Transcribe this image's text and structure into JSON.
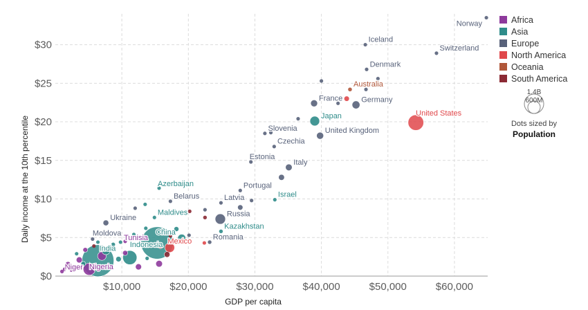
{
  "chart_data": {
    "type": "scatter",
    "xlabel": "GDP per capita",
    "ylabel": "Daily income at the 10th percentile",
    "xlim": [
      0,
      65000
    ],
    "ylim": [
      0,
      34
    ],
    "x_ticks": [
      {
        "value": 10000,
        "label": "$10,000"
      },
      {
        "value": 20000,
        "label": "$20,000"
      },
      {
        "value": 30000,
        "label": "$30,000"
      },
      {
        "value": 40000,
        "label": "$40,000"
      },
      {
        "value": 50000,
        "label": "$50,000"
      },
      {
        "value": 60000,
        "label": "$60,000"
      }
    ],
    "y_ticks": [
      {
        "value": 0,
        "label": "$0"
      },
      {
        "value": 5,
        "label": "$5"
      },
      {
        "value": 10,
        "label": "$10"
      },
      {
        "value": 15,
        "label": "$15"
      },
      {
        "value": 20,
        "label": "$20"
      },
      {
        "value": 25,
        "label": "$25"
      },
      {
        "value": 30,
        "label": "$30"
      }
    ],
    "grid": true,
    "legend_position": "right",
    "regions": [
      {
        "name": "Africa",
        "color": "#8e3a9c"
      },
      {
        "name": "Asia",
        "color": "#2f8c8a"
      },
      {
        "name": "Europe",
        "color": "#58627a"
      },
      {
        "name": "North America",
        "color": "#e0484b"
      },
      {
        "name": "Oceania",
        "color": "#b0573a"
      },
      {
        "name": "South America",
        "color": "#8b2a34"
      }
    ],
    "size_legend": {
      "large": "1.4B",
      "small": "600M",
      "note": "Dots sized by",
      "variable": "Population"
    },
    "points": [
      {
        "label": "Norway",
        "x": 64800,
        "y": 33.5,
        "region": "Europe",
        "pop": 5
      },
      {
        "label": "Switzerland",
        "x": 57300,
        "y": 28.9,
        "region": "Europe",
        "pop": 8
      },
      {
        "label": "Iceland",
        "x": 46600,
        "y": 30.0,
        "region": "Europe",
        "pop": 0.4
      },
      {
        "label": "Denmark",
        "x": 46800,
        "y": 26.8,
        "region": "Europe",
        "pop": 6
      },
      {
        "label": "Australia",
        "x": 44300,
        "y": 24.2,
        "region": "Oceania",
        "pop": 25
      },
      {
        "label": "France",
        "x": 38900,
        "y": 22.4,
        "region": "Europe",
        "pop": 65
      },
      {
        "label": "Germany",
        "x": 45200,
        "y": 22.2,
        "region": "Europe",
        "pop": 83
      },
      {
        "label": "Japan",
        "x": 39000,
        "y": 20.1,
        "region": "Asia",
        "pop": 126
      },
      {
        "label": "United States",
        "x": 54200,
        "y": 19.9,
        "region": "North America",
        "pop": 330
      },
      {
        "label": "United Kingdom",
        "x": 39800,
        "y": 18.2,
        "region": "Europe",
        "pop": 67
      },
      {
        "label": "Slovenia",
        "x": 31500,
        "y": 18.5,
        "region": "Europe",
        "pop": 2
      },
      {
        "label": "Czechia",
        "x": 32900,
        "y": 16.8,
        "region": "Europe",
        "pop": 10
      },
      {
        "label": "Estonia",
        "x": 29400,
        "y": 14.8,
        "region": "Europe",
        "pop": 1.3
      },
      {
        "label": "Italy",
        "x": 35100,
        "y": 14.1,
        "region": "Europe",
        "pop": 60
      },
      {
        "label": "Azerbaijan",
        "x": 15600,
        "y": 11.4,
        "region": "Asia",
        "pop": 10
      },
      {
        "label": "Portugal",
        "x": 27800,
        "y": 11.1,
        "region": "Europe",
        "pop": 10
      },
      {
        "label": "Belarus",
        "x": 17300,
        "y": 9.7,
        "region": "Europe",
        "pop": 9
      },
      {
        "label": "Israel",
        "x": 33000,
        "y": 9.9,
        "region": "Asia",
        "pop": 9
      },
      {
        "label": "Latvia",
        "x": 24900,
        "y": 9.5,
        "region": "Europe",
        "pop": 2
      },
      {
        "label": "Maldives",
        "x": 14900,
        "y": 7.6,
        "region": "Asia",
        "pop": 0.5
      },
      {
        "label": "Russia",
        "x": 24800,
        "y": 7.4,
        "region": "Europe",
        "pop": 145
      },
      {
        "label": "Ukraine",
        "x": 7600,
        "y": 6.9,
        "region": "Europe",
        "pop": 44
      },
      {
        "label": "Kazakhstan",
        "x": 24900,
        "y": 5.8,
        "region": "Asia",
        "pop": 19
      },
      {
        "label": "China",
        "x": 15300,
        "y": 4.3,
        "region": "Asia",
        "pop": 1400
      },
      {
        "label": "Moldova",
        "x": 5600,
        "y": 4.8,
        "region": "Europe",
        "pop": 3
      },
      {
        "label": "Tunisia",
        "x": 10500,
        "y": 4.5,
        "region": "Africa",
        "pop": 12
      },
      {
        "label": "Mexico",
        "x": 17200,
        "y": 3.7,
        "region": "North America",
        "pop": 128
      },
      {
        "label": "Romania",
        "x": 23200,
        "y": 4.4,
        "region": "Europe",
        "pop": 19
      },
      {
        "label": "India",
        "x": 6400,
        "y": 2.0,
        "region": "Asia",
        "pop": 1380
      },
      {
        "label": "Indonesia",
        "x": 11200,
        "y": 2.4,
        "region": "Asia",
        "pop": 270
      },
      {
        "label": "Nigeria",
        "x": 5100,
        "y": 0.9,
        "region": "Africa",
        "pop": 200
      },
      {
        "label": "Niger",
        "x": 1000,
        "y": 0.6,
        "region": "Africa",
        "pop": 23
      },
      {
        "x": 40000,
        "y": 25.3,
        "region": "Europe",
        "pop": 1
      },
      {
        "x": 48500,
        "y": 25.6,
        "region": "Europe",
        "pop": 1
      },
      {
        "x": 42500,
        "y": 22.4,
        "region": "Europe",
        "pop": 2
      },
      {
        "x": 46700,
        "y": 24.2,
        "region": "Europe",
        "pop": 11
      },
      {
        "x": 43800,
        "y": 23.0,
        "region": "North America",
        "pop": 38
      },
      {
        "x": 36500,
        "y": 20.4,
        "region": "Europe",
        "pop": 2
      },
      {
        "x": 32400,
        "y": 18.6,
        "region": "Europe",
        "pop": 2
      },
      {
        "x": 34000,
        "y": 12.8,
        "region": "Europe",
        "pop": 47
      },
      {
        "x": 29500,
        "y": 9.8,
        "region": "Europe",
        "pop": 4
      },
      {
        "x": 27800,
        "y": 8.9,
        "region": "Europe",
        "pop": 38
      },
      {
        "x": 22500,
        "y": 8.6,
        "region": "Europe",
        "pop": 4
      },
      {
        "x": 22500,
        "y": 7.6,
        "region": "South America",
        "pop": 19
      },
      {
        "x": 20200,
        "y": 8.4,
        "region": "South America",
        "pop": 3
      },
      {
        "x": 18200,
        "y": 6.1,
        "region": "Asia",
        "pop": 33
      },
      {
        "x": 12000,
        "y": 8.8,
        "region": "Europe",
        "pop": 3
      },
      {
        "x": 13500,
        "y": 9.3,
        "region": "Asia",
        "pop": 4
      },
      {
        "x": 11800,
        "y": 5.4,
        "region": "Asia",
        "pop": 4
      },
      {
        "x": 13600,
        "y": 6.2,
        "region": "Asia",
        "pop": 5
      },
      {
        "x": 17300,
        "y": 5.2,
        "region": "South America",
        "pop": 6
      },
      {
        "x": 20100,
        "y": 5.3,
        "region": "Europe",
        "pop": 7
      },
      {
        "x": 22400,
        "y": 4.3,
        "region": "North America",
        "pop": 15
      },
      {
        "x": 19000,
        "y": 4.9,
        "region": "Asia",
        "pop": 90
      },
      {
        "x": 15800,
        "y": 3.9,
        "region": "North America",
        "pop": 35
      },
      {
        "x": 16800,
        "y": 2.8,
        "region": "South America",
        "pop": 45
      },
      {
        "x": 15600,
        "y": 1.6,
        "region": "Africa",
        "pop": 60
      },
      {
        "x": 12500,
        "y": 1.2,
        "region": "Africa",
        "pop": 50
      },
      {
        "x": 10500,
        "y": 3.0,
        "region": "Africa",
        "pop": 35
      },
      {
        "x": 9500,
        "y": 2.2,
        "region": "Asia",
        "pop": 40
      },
      {
        "x": 7600,
        "y": 3.3,
        "region": "Asia",
        "pop": 90
      },
      {
        "x": 7000,
        "y": 2.6,
        "region": "Africa",
        "pop": 100
      },
      {
        "x": 4500,
        "y": 3.4,
        "region": "Africa",
        "pop": 30
      },
      {
        "x": 3600,
        "y": 2.1,
        "region": "Africa",
        "pop": 50
      },
      {
        "x": 2700,
        "y": 1.2,
        "region": "Africa",
        "pop": 25
      },
      {
        "x": 1900,
        "y": 1.5,
        "region": "Africa",
        "pop": 45
      },
      {
        "x": 2400,
        "y": 0.8,
        "region": "Africa",
        "pop": 20
      },
      {
        "x": 1400,
        "y": 0.9,
        "region": "Africa",
        "pop": 18
      },
      {
        "x": 3200,
        "y": 2.9,
        "region": "Asia",
        "pop": 10
      },
      {
        "x": 4200,
        "y": 1.6,
        "region": "Asia",
        "pop": 30
      },
      {
        "x": 5800,
        "y": 3.9,
        "region": "South America",
        "pop": 10
      },
      {
        "x": 8700,
        "y": 4.1,
        "region": "Asia",
        "pop": 25
      },
      {
        "x": 9800,
        "y": 4.4,
        "region": "Asia",
        "pop": 9
      },
      {
        "x": 6400,
        "y": 4.4,
        "region": "Asia",
        "pop": 8
      },
      {
        "x": 13800,
        "y": 2.3,
        "region": "Asia",
        "pop": 9
      }
    ]
  }
}
